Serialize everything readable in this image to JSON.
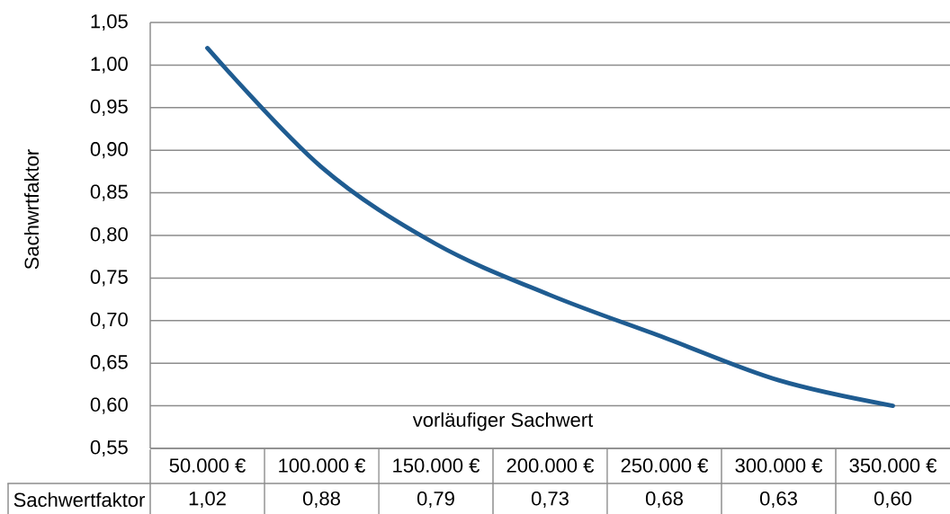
{
  "chart_data": {
    "type": "line",
    "xlabel": "vorläufiger Sachwert",
    "ylabel": "Sachwrtfaktor",
    "categories": [
      "50.000 €",
      "100.000 €",
      "150.000 €",
      "200.000 €",
      "250.000 €",
      "300.000 €",
      "350.000 €"
    ],
    "series": [
      {
        "name": "Sachwertfaktor",
        "color": "#1f5c91",
        "values": [
          1.02,
          0.88,
          0.79,
          0.73,
          0.68,
          0.63,
          0.6
        ],
        "value_labels": [
          "1,02",
          "0,88",
          "0,79",
          "0,73",
          "0,68",
          "0,63",
          "0,60"
        ]
      }
    ],
    "ylim": [
      0.55,
      1.05
    ],
    "yticks": [
      {
        "value": 0.55,
        "label": "0,55"
      },
      {
        "value": 0.6,
        "label": "0,60"
      },
      {
        "value": 0.65,
        "label": "0,65"
      },
      {
        "value": 0.7,
        "label": "0,70"
      },
      {
        "value": 0.75,
        "label": "0,75"
      },
      {
        "value": 0.8,
        "label": "0,80"
      },
      {
        "value": 0.85,
        "label": "0,85"
      },
      {
        "value": 0.9,
        "label": "0,90"
      },
      {
        "value": 0.95,
        "label": "0,95"
      },
      {
        "value": 1.0,
        "label": "1,00"
      },
      {
        "value": 1.05,
        "label": "1,05"
      }
    ],
    "grid": "y",
    "marker": "none",
    "line_style": "solid"
  }
}
